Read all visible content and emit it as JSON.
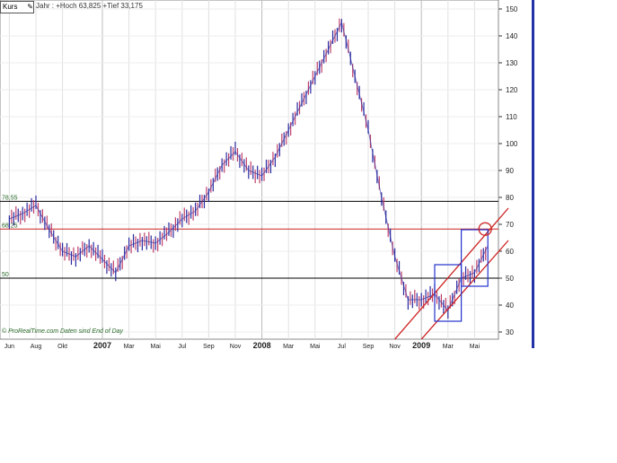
{
  "header": {
    "instrument_label": "Kurs",
    "summary": "Jahr : +Hoch 63,825 +Tief 33,175"
  },
  "credit": "© ProRealTime.com  Daten sind End of Day",
  "chart_data": {
    "type": "line",
    "y_axis": {
      "side": "right",
      "range": [
        27,
        152
      ],
      "ticks": [
        30,
        40,
        50,
        60,
        70,
        80,
        90,
        100,
        110,
        120,
        130,
        140,
        150
      ]
    },
    "x_axis": {
      "ticks": [
        {
          "label": "Jun",
          "date": "2006-06"
        },
        {
          "label": "Aug",
          "date": "2006-08"
        },
        {
          "label": "Okt",
          "date": "2006-10"
        },
        {
          "label": "2007",
          "date": "2007-01",
          "bold": true
        },
        {
          "label": "Mar",
          "date": "2007-03"
        },
        {
          "label": "Mai",
          "date": "2007-05"
        },
        {
          "label": "Jul",
          "date": "2007-07"
        },
        {
          "label": "Sep",
          "date": "2007-09"
        },
        {
          "label": "Nov",
          "date": "2007-11"
        },
        {
          "label": "2008",
          "date": "2008-01",
          "bold": true
        },
        {
          "label": "Mar",
          "date": "2008-03"
        },
        {
          "label": "Mai",
          "date": "2008-05"
        },
        {
          "label": "Jul",
          "date": "2008-07"
        },
        {
          "label": "Sep",
          "date": "2008-09"
        },
        {
          "label": "Nov",
          "date": "2008-11"
        },
        {
          "label": "2009",
          "date": "2009-01",
          "bold": true
        },
        {
          "label": "Mar",
          "date": "2009-03"
        },
        {
          "label": "Mai",
          "date": "2009-05"
        }
      ]
    },
    "grid": true,
    "series": [
      {
        "color": "#2a2aa0",
        "points": [
          [
            "2006-06",
            72
          ],
          [
            "2006-07",
            74
          ],
          [
            "2006-08",
            77
          ],
          [
            "2006-09",
            68
          ],
          [
            "2006-10",
            60
          ],
          [
            "2006-11",
            58
          ],
          [
            "2006-12",
            62
          ],
          [
            "2007-01",
            57
          ],
          [
            "2007-02",
            52
          ],
          [
            "2007-03",
            62
          ],
          [
            "2007-04",
            64
          ],
          [
            "2007-05",
            63
          ],
          [
            "2007-06",
            67
          ],
          [
            "2007-07",
            72
          ],
          [
            "2007-08",
            75
          ],
          [
            "2007-09",
            82
          ],
          [
            "2007-10",
            92
          ],
          [
            "2007-11",
            97
          ],
          [
            "2007-12",
            90
          ],
          [
            "2008-01",
            88
          ],
          [
            "2008-02",
            95
          ],
          [
            "2008-03",
            105
          ],
          [
            "2008-04",
            115
          ],
          [
            "2008-05",
            125
          ],
          [
            "2008-06",
            135
          ],
          [
            "2008-07",
            145
          ],
          [
            "2008-08",
            125
          ],
          [
            "2008-09",
            105
          ],
          [
            "2008-10",
            80
          ],
          [
            "2008-11",
            58
          ],
          [
            "2008-12",
            42
          ],
          [
            "2009-01",
            42
          ],
          [
            "2009-02",
            44
          ],
          [
            "2009-03",
            38
          ],
          [
            "2009-04",
            50
          ],
          [
            "2009-05",
            52
          ],
          [
            "2009-06",
            62
          ]
        ]
      }
    ],
    "annotations": {
      "hlines": [
        {
          "value": 78.55,
          "label": "78,55",
          "color": "#000000"
        },
        {
          "value": 68.25,
          "label": "68,25",
          "color": "#cc2222"
        },
        {
          "value": 50,
          "label": "50",
          "color": "#000000"
        }
      ],
      "channel": [
        {
          "from": [
            "2008-11",
            27.3
          ],
          "to": [
            "2009-07",
            76
          ],
          "color": "#cc2222"
        },
        {
          "from": [
            "2009-01",
            27.3
          ],
          "to": [
            "2009-07",
            64
          ],
          "color": "#cc2222"
        }
      ],
      "boxes": [
        {
          "from": "2009-02",
          "to": "2009-04",
          "high": 55,
          "low": 34,
          "color": "#2233cc"
        },
        {
          "from": "2009-04",
          "to": "2009-06",
          "high": 68,
          "low": 47,
          "color": "#2233cc"
        }
      ],
      "circle": {
        "date": "2009-06",
        "value": 68.25,
        "color": "#cc2222"
      }
    }
  }
}
